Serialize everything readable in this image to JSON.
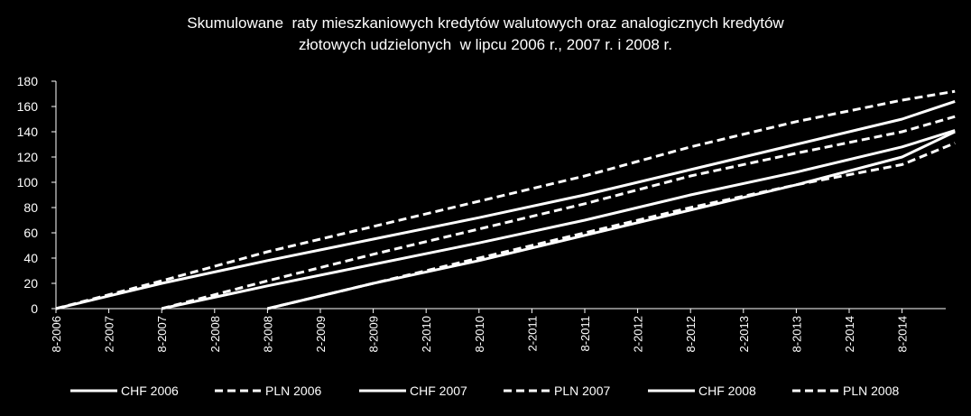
{
  "chart_data": {
    "type": "line",
    "title_lines": [
      "Skumulowane  raty mieszkaniowych kredytów walutowych oraz analogicznych kredytów",
      "złotowych udzielonych  w lipcu 2006 r., 2007 r. i 2008 r."
    ],
    "xlabel": "",
    "ylabel": "",
    "ylim": [
      0,
      180
    ],
    "yticks": [
      0,
      20,
      40,
      60,
      80,
      100,
      120,
      140,
      160,
      180
    ],
    "xticks": [
      "8-2006",
      "2-2007",
      "8-2007",
      "2-2008",
      "8-2008",
      "2-2009",
      "8-2009",
      "2-2010",
      "8-2010",
      "2-2011",
      "8-2011",
      "2-2012",
      "8-2012",
      "2-2013",
      "8-2013",
      "2-2014",
      "8-2014"
    ],
    "x_end": "2-2015",
    "grid": false,
    "legend_position": "bottom",
    "colors": {
      "background": "#000000",
      "line": "#ffffff",
      "axis": "#ffffff"
    },
    "series": [
      {
        "name": "CHF 2006",
        "style": "solid",
        "x": [
          "8-2006",
          "8-2007",
          "8-2008",
          "8-2009",
          "8-2010",
          "8-2011",
          "8-2012",
          "8-2013",
          "8-2014",
          "2-2015"
        ],
        "y": [
          0,
          20,
          38,
          55,
          72,
          90,
          110,
          130,
          150,
          164
        ]
      },
      {
        "name": "PLN 2006",
        "style": "dashed",
        "x": [
          "8-2006",
          "8-2007",
          "8-2008",
          "8-2009",
          "8-2010",
          "8-2011",
          "8-2012",
          "8-2013",
          "8-2014",
          "2-2015"
        ],
        "y": [
          0,
          22,
          45,
          65,
          85,
          105,
          128,
          148,
          165,
          172
        ]
      },
      {
        "name": "CHF 2007",
        "style": "solid",
        "x": [
          "8-2007",
          "8-2008",
          "8-2009",
          "8-2010",
          "8-2011",
          "8-2012",
          "8-2013",
          "8-2014",
          "2-2015"
        ],
        "y": [
          0,
          18,
          35,
          52,
          70,
          90,
          108,
          128,
          141
        ]
      },
      {
        "name": "PLN 2007",
        "style": "dashed",
        "x": [
          "8-2007",
          "8-2008",
          "8-2009",
          "8-2010",
          "8-2011",
          "8-2012",
          "8-2013",
          "8-2014",
          "2-2015"
        ],
        "y": [
          0,
          22,
          43,
          63,
          83,
          105,
          123,
          140,
          152
        ]
      },
      {
        "name": "CHF 2008",
        "style": "solid",
        "x": [
          "8-2008",
          "8-2009",
          "8-2010",
          "8-2011",
          "8-2012",
          "8-2013",
          "8-2014",
          "2-2015"
        ],
        "y": [
          0,
          20,
          38,
          58,
          78,
          98,
          120,
          140
        ]
      },
      {
        "name": "PLN 2008",
        "style": "dashed",
        "x": [
          "8-2008",
          "8-2009",
          "8-2010",
          "8-2011",
          "8-2012",
          "8-2013",
          "8-2014",
          "2-2015"
        ],
        "y": [
          0,
          20,
          40,
          60,
          80,
          98,
          114,
          131
        ]
      }
    ]
  }
}
